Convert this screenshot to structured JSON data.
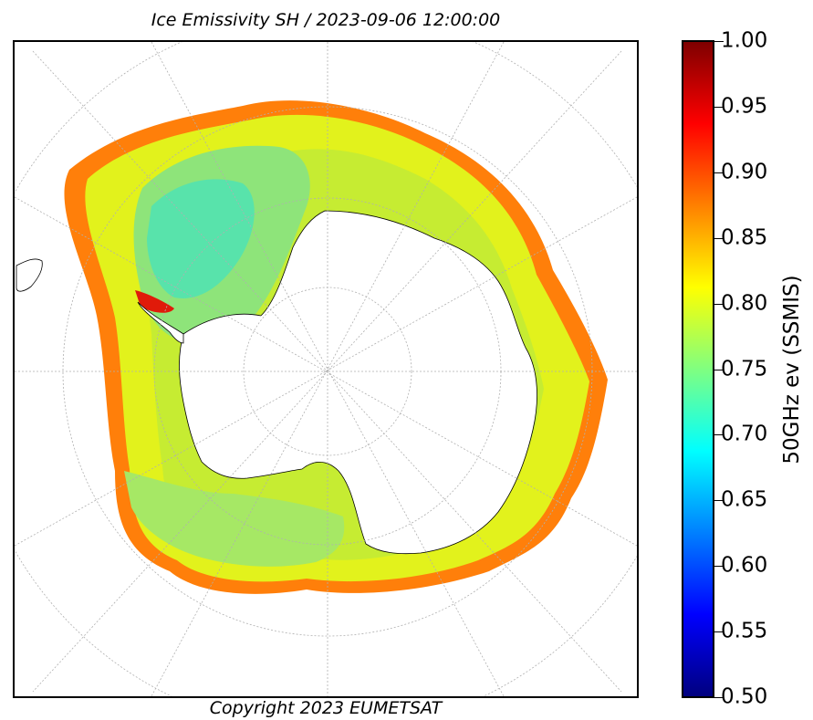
{
  "title": "Ice Emissivity SH / 2023-09-06 12:00:00",
  "copyright": "Copyright 2023 EUMETSAT",
  "colorbar": {
    "label": "50GHz ev (SSMIS)",
    "min": 0.5,
    "max": 1.0,
    "ticks": [
      "0.50",
      "0.55",
      "0.60",
      "0.65",
      "0.70",
      "0.75",
      "0.80",
      "0.85",
      "0.90",
      "0.95",
      "1.00"
    ],
    "colormap": "jet"
  },
  "map": {
    "projection": "polar stereographic (south pole)",
    "gridlines": "dashed",
    "colors": {
      "outer_edge": "#ff7f0a",
      "mid_ring": "#d8f018",
      "inner_ring": "#b8ea3a",
      "weddell_sea": "#7ee28a",
      "weddell_core": "#4fe3b4",
      "ross_sea": "#9fe76a",
      "high_value": "#e01a0a",
      "land": "#ffffff",
      "coastline": "#000000",
      "grid": "#b0b0b0"
    }
  }
}
